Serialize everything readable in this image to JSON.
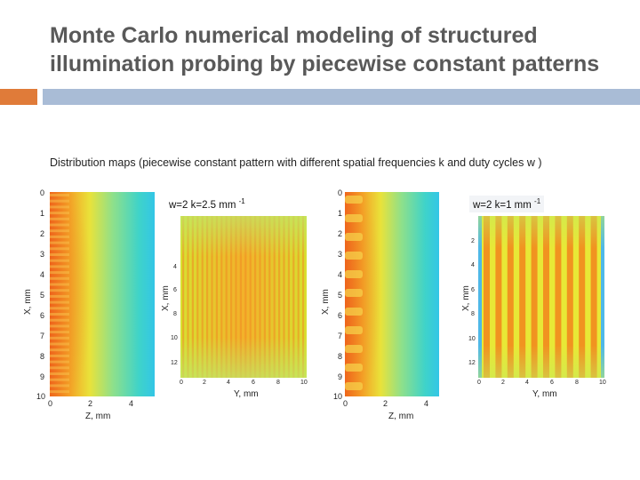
{
  "slide": {
    "title_line1": "Monte Carlo numerical modeling of structured",
    "title_line2": "illumination probing by piecewise constant patterns",
    "subtitle": "Distribution maps (piecewise constant pattern with  different spatial frequencies k and duty cycles w )"
  },
  "colors": {
    "accent_orange": "#e07b39",
    "accent_blue": "#a9bcd6",
    "title_gray": "#595959"
  },
  "figures": {
    "left": {
      "xz_map": {
        "y_ticks": [
          "0",
          "1",
          "2",
          "3",
          "4",
          "5",
          "6",
          "7",
          "8",
          "9",
          "10"
        ],
        "x_ticks": [
          "0",
          "2",
          "4"
        ],
        "ylabel": "X, mm",
        "xlabel": "Z, mm"
      },
      "xy_map": {
        "label_w": "w=2  k=2.5 mm",
        "label_sup": "-1",
        "y_ticks": [
          "4",
          "6",
          "8",
          "10",
          "12"
        ],
        "x_ticks": [
          "0",
          "2",
          "4",
          "6",
          "8",
          "10"
        ],
        "ylabel": "X, mm",
        "xlabel": "Y, mm"
      }
    },
    "right": {
      "xz_map": {
        "y_ticks": [
          "0",
          "1",
          "2",
          "3",
          "4",
          "5",
          "6",
          "7",
          "8",
          "9",
          "10"
        ],
        "x_ticks": [
          "0",
          "2",
          "4"
        ],
        "ylabel": "X, mm",
        "xlabel": "Z, mm"
      },
      "xy_map": {
        "label_w": "w=2   k=1 mm",
        "label_sup": "-1",
        "y_ticks": [
          "2",
          "4",
          "6",
          "8",
          "10",
          "12"
        ],
        "x_ticks": [
          "0",
          "2",
          "4",
          "6",
          "8",
          "10"
        ],
        "ylabel": "X, mm",
        "xlabel": "Y, mm"
      }
    }
  }
}
